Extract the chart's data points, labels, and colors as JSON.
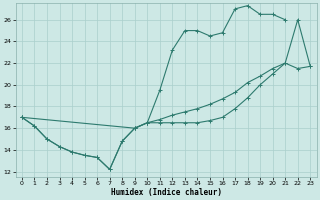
{
  "xlabel": "Humidex (Indice chaleur)",
  "xlim": [
    -0.5,
    23.5
  ],
  "ylim": [
    11.5,
    27.5
  ],
  "xticks": [
    0,
    1,
    2,
    3,
    4,
    5,
    6,
    7,
    8,
    9,
    10,
    11,
    12,
    13,
    14,
    15,
    16,
    17,
    18,
    19,
    20,
    21,
    22,
    23
  ],
  "yticks": [
    12,
    14,
    16,
    18,
    20,
    22,
    24,
    26
  ],
  "bg_color": "#cde8e5",
  "grid_color": "#aacfcc",
  "line_color": "#2d7a6e",
  "line1_x": [
    0,
    1,
    2,
    3,
    4,
    5,
    6,
    7,
    8,
    9,
    10,
    11,
    12,
    13,
    14,
    15,
    16,
    17,
    18,
    19,
    20,
    21
  ],
  "line1_y": [
    17.0,
    16.2,
    15.0,
    14.3,
    13.8,
    13.5,
    13.3,
    12.2,
    14.8,
    16.0,
    16.5,
    19.5,
    23.2,
    25.0,
    25.0,
    24.5,
    24.8,
    27.0,
    27.3,
    26.5,
    26.5,
    26.0
  ],
  "line2_x": [
    0,
    1,
    2,
    3,
    4,
    5,
    6,
    7,
    8,
    9,
    10,
    11,
    12,
    13,
    14,
    15,
    16,
    17,
    18,
    19,
    20,
    21,
    22,
    23
  ],
  "line2_y": [
    17.0,
    16.2,
    15.0,
    14.3,
    13.8,
    13.5,
    13.3,
    12.2,
    14.8,
    16.0,
    16.5,
    16.5,
    16.5,
    16.5,
    16.5,
    16.7,
    17.0,
    17.8,
    18.8,
    20.0,
    21.0,
    22.0,
    21.5,
    21.7
  ],
  "line3_x": [
    0,
    9,
    10,
    11,
    12,
    13,
    14,
    15,
    16,
    17,
    18,
    19,
    20,
    21,
    22,
    23
  ],
  "line3_y": [
    17.0,
    16.0,
    16.5,
    16.8,
    17.2,
    17.5,
    17.8,
    18.2,
    18.7,
    19.3,
    20.2,
    20.8,
    21.5,
    22.0,
    26.0,
    21.7
  ]
}
